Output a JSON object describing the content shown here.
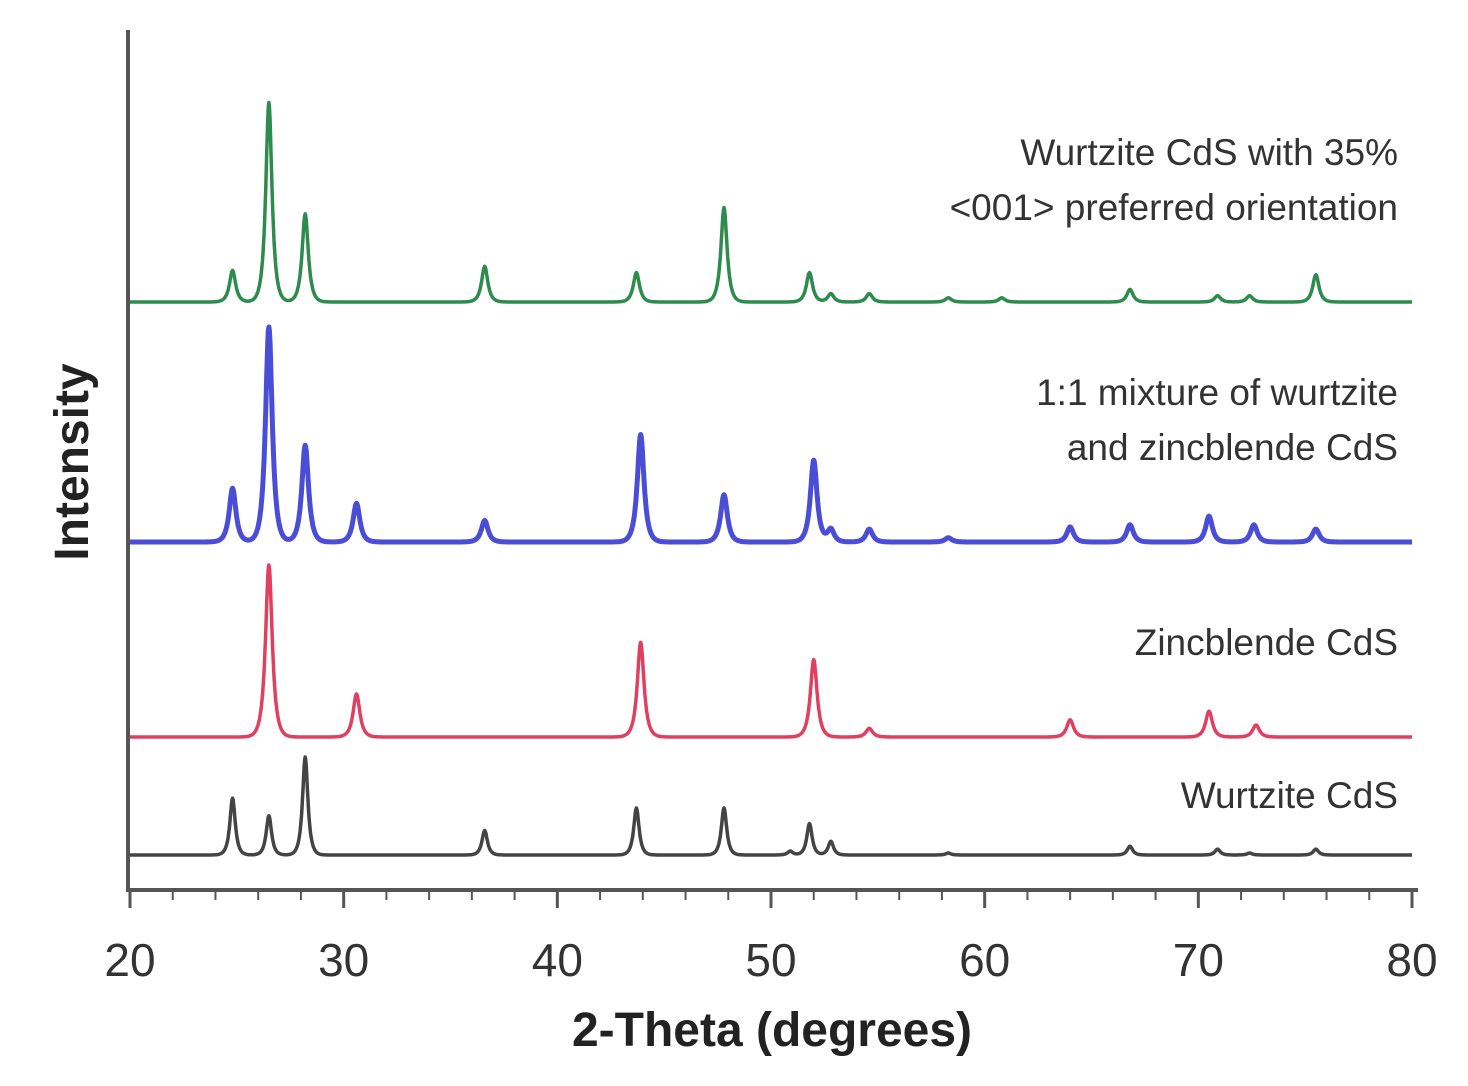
{
  "chart_data": {
    "type": "line",
    "xlabel": "2-Theta (degrees)",
    "ylabel": "Intensity",
    "xlim": [
      20,
      80
    ],
    "x_ticks": [
      "20",
      "30",
      "40",
      "50",
      "60",
      "70",
      "80"
    ],
    "y_ticks": "none",
    "grid": false,
    "legend": "none",
    "series": [
      {
        "key": "pref",
        "name": "Wurtzite CdS with 35% <001> preferred orientation",
        "label_lines": [
          "Wurtzite CdS with 35%",
          "<001> preferred orientation"
        ],
        "color": "#2e8b4e",
        "baseline": 0,
        "width": 0.23,
        "peaks": [
          [
            24.8,
            15
          ],
          [
            26.5,
            95
          ],
          [
            28.2,
            42
          ],
          [
            36.6,
            17
          ],
          [
            43.7,
            14
          ],
          [
            47.8,
            45
          ],
          [
            51.8,
            14
          ],
          [
            52.8,
            4
          ],
          [
            54.6,
            4
          ],
          [
            58.3,
            2
          ],
          [
            60.8,
            2
          ],
          [
            66.8,
            6
          ],
          [
            70.9,
            3
          ],
          [
            72.4,
            3
          ],
          [
            75.5,
            13
          ]
        ]
      },
      {
        "key": "mix",
        "name": "1:1 mixture of wurtzite and zincblende CdS",
        "label_lines": [
          "1:1 mixture of wurtzite",
          "and zincblende CdS"
        ],
        "color": "#4a4ed6",
        "baseline": 0,
        "width": 0.25,
        "peaks": [
          [
            24.8,
            25
          ],
          [
            26.5,
            100
          ],
          [
            28.2,
            45
          ],
          [
            30.6,
            18
          ],
          [
            36.6,
            10
          ],
          [
            43.9,
            50
          ],
          [
            47.8,
            22
          ],
          [
            52.0,
            38
          ],
          [
            52.8,
            6
          ],
          [
            54.6,
            6
          ],
          [
            58.3,
            2
          ],
          [
            64.0,
            7
          ],
          [
            66.8,
            8
          ],
          [
            70.5,
            12
          ],
          [
            72.6,
            8
          ],
          [
            75.5,
            6
          ]
        ]
      },
      {
        "key": "zb",
        "name": "Zincblende CdS",
        "label_lines": [
          "Zincblende CdS"
        ],
        "color": "#e04060",
        "baseline": 0,
        "width": 0.25,
        "peaks": [
          [
            26.5,
            100
          ],
          [
            30.6,
            25
          ],
          [
            43.9,
            55
          ],
          [
            52.0,
            45
          ],
          [
            54.6,
            5
          ],
          [
            64.0,
            10
          ],
          [
            70.5,
            15
          ],
          [
            72.7,
            7
          ]
        ]
      },
      {
        "key": "wz",
        "name": "Wurtzite CdS",
        "label_lines": [
          "Wurtzite CdS"
        ],
        "color": "#444444",
        "baseline": 0,
        "width": 0.2,
        "peaks": [
          [
            24.8,
            58
          ],
          [
            26.5,
            40
          ],
          [
            28.2,
            100
          ],
          [
            36.6,
            25
          ],
          [
            43.7,
            48
          ],
          [
            47.8,
            48
          ],
          [
            50.9,
            4
          ],
          [
            51.8,
            32
          ],
          [
            52.8,
            14
          ],
          [
            58.3,
            2
          ],
          [
            66.8,
            9
          ],
          [
            70.9,
            6
          ],
          [
            72.4,
            2
          ],
          [
            75.5,
            6
          ]
        ]
      }
    ]
  }
}
